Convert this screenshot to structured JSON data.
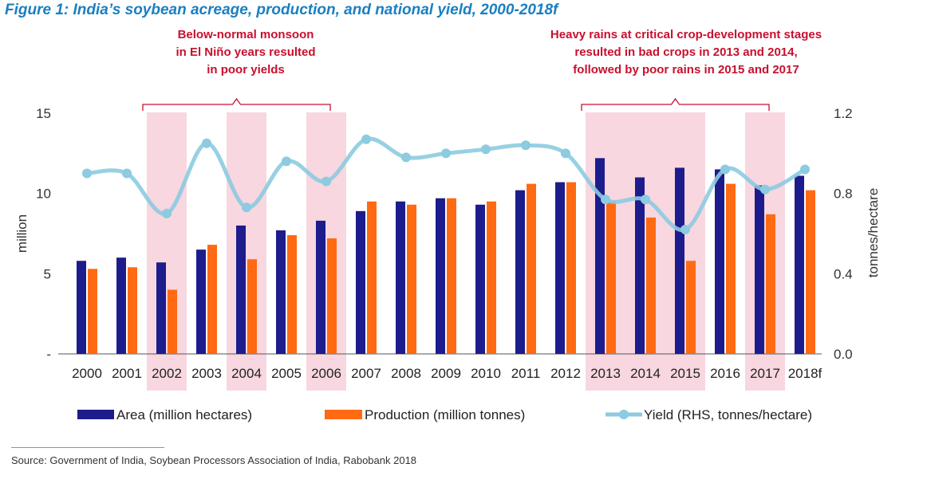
{
  "title": "Figure 1: India’s soybean acreage, production, and national yield, 2000-2018f",
  "source": "Source: Government of India, Soybean Processors Association of India, Rabobank 2018",
  "colors": {
    "title": "#1a7fc1",
    "area": "#1c1c8c",
    "production": "#ff6a13",
    "yield": "#8ccbe0",
    "highlight": "#f8d7e0",
    "annotation": "#c8102e",
    "axis": "#555555",
    "source_rule": "#f07a1e"
  },
  "chart_data": {
    "type": "bar",
    "title": "Figure 1: India’s soybean acreage, production, and national yield, 2000-2018f",
    "categories": [
      "2000",
      "2001",
      "2002",
      "2003",
      "2004",
      "2005",
      "2006",
      "2007",
      "2008",
      "2009",
      "2010",
      "2011",
      "2012",
      "2013",
      "2014",
      "2015",
      "2016",
      "2017",
      "2018f"
    ],
    "series": [
      {
        "name": "Area (million hectares)",
        "type": "bar",
        "axis": "left",
        "values": [
          5.8,
          6.0,
          5.7,
          6.5,
          8.0,
          7.7,
          8.3,
          8.9,
          9.5,
          9.7,
          9.3,
          10.2,
          10.7,
          12.2,
          11.0,
          11.6,
          11.5,
          10.5,
          11.1
        ]
      },
      {
        "name": "Production (million tonnes)",
        "type": "bar",
        "axis": "left",
        "values": [
          5.3,
          5.4,
          4.0,
          6.8,
          5.9,
          7.4,
          7.2,
          9.5,
          9.3,
          9.7,
          9.5,
          10.6,
          10.7,
          9.5,
          8.5,
          5.8,
          10.6,
          8.7,
          10.2
        ]
      },
      {
        "name": "Yield (RHS, tonnes/hectare)",
        "type": "line",
        "axis": "right",
        "values": [
          0.9,
          0.9,
          0.7,
          1.05,
          0.73,
          0.96,
          0.86,
          1.07,
          0.98,
          1.0,
          1.02,
          1.04,
          1.0,
          0.77,
          0.77,
          0.62,
          0.92,
          0.82,
          0.92
        ]
      }
    ],
    "ylabel": "million",
    "ylim": [
      0,
      15
    ],
    "yticks": [
      0,
      5,
      10,
      15
    ],
    "ytick_labels": [
      "-",
      "5",
      "10",
      "15"
    ],
    "y2label": "tonnes/hectare",
    "y2lim": [
      0,
      1.2
    ],
    "y2ticks": [
      0,
      0.4,
      0.8,
      1.2
    ],
    "y2tick_labels": [
      "0.0",
      "0.4",
      "0.8",
      "1.2"
    ],
    "highlighted_categories": [
      "2002",
      "2004",
      "2006",
      "2013",
      "2014",
      "2015",
      "2017"
    ],
    "annotations": [
      {
        "lines": [
          "Below-normal monsoon",
          "in El Niño years resulted",
          "in poor yields"
        ],
        "span": [
          "2002",
          "2006"
        ]
      },
      {
        "lines": [
          "Heavy rains at critical crop-development stages",
          "resulted in bad crops in 2013 and 2014,",
          "followed by poor rains in 2015 and 2017"
        ],
        "span": [
          "2013",
          "2017"
        ]
      }
    ],
    "legend_position": "bottom"
  }
}
